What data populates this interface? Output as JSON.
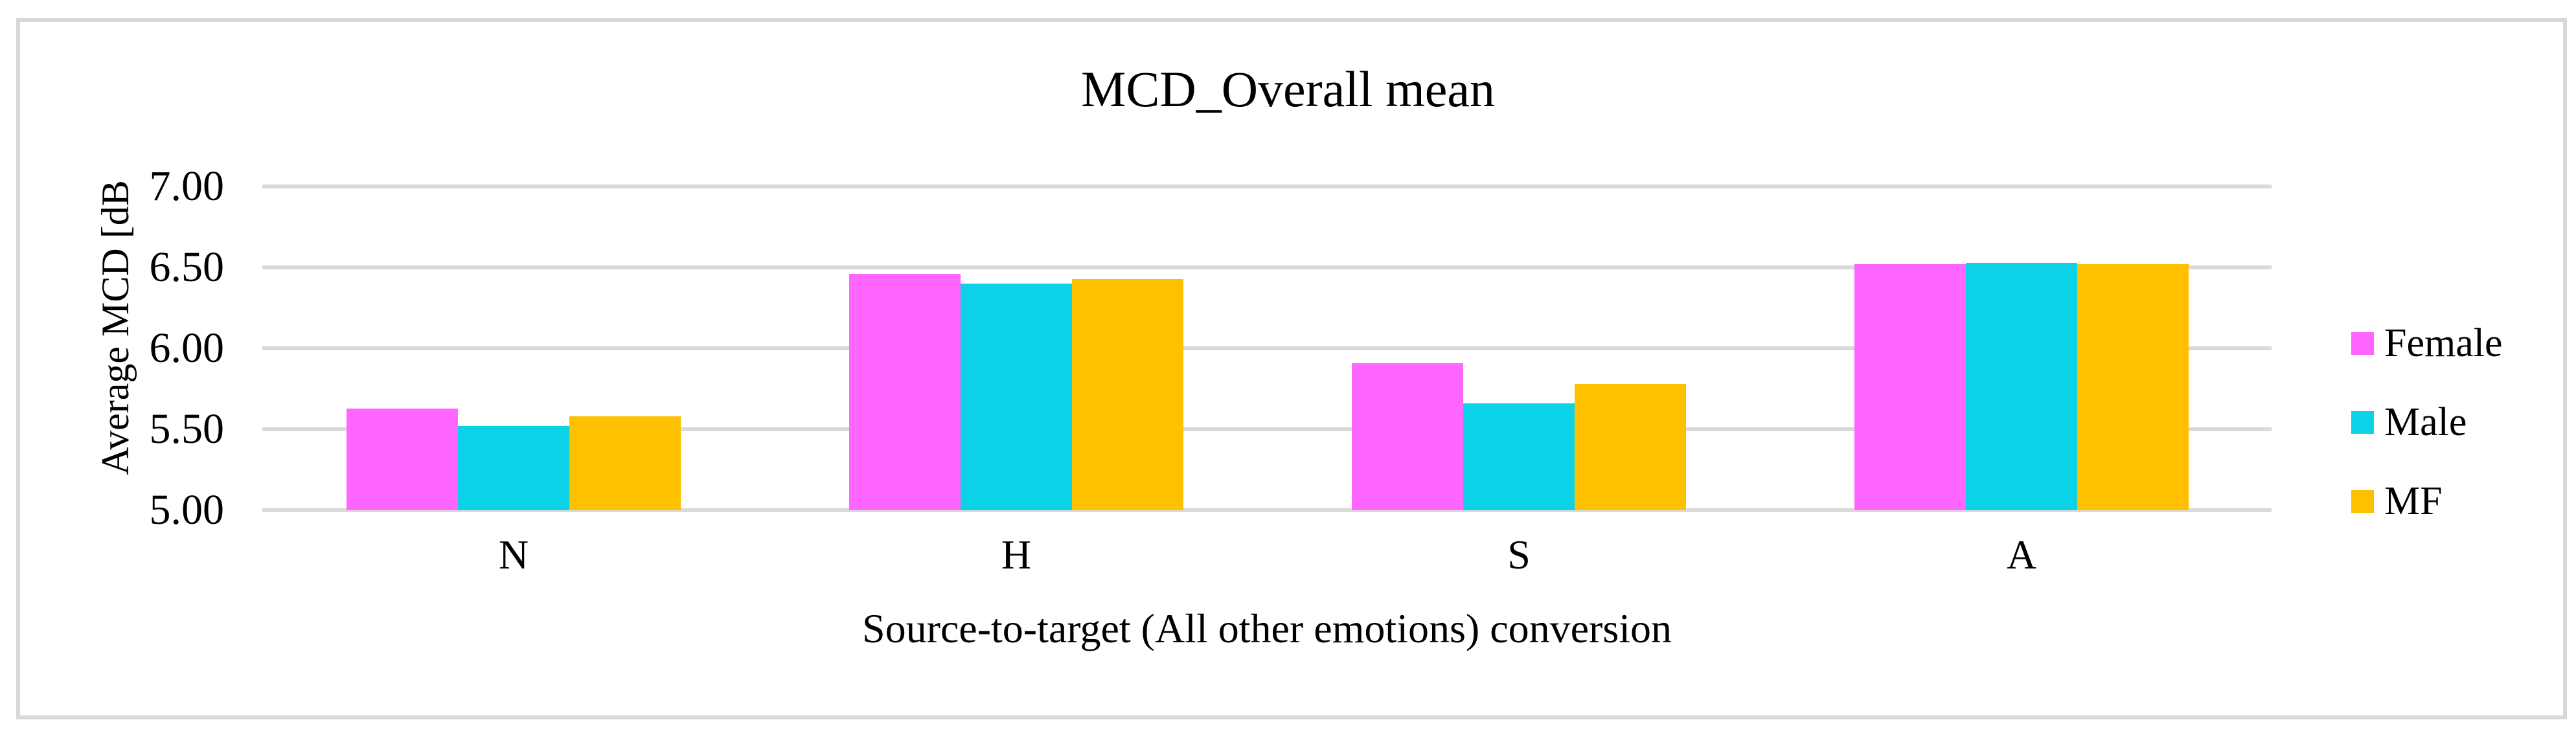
{
  "figure": {
    "border_color": "#D8D8D8",
    "background_color": "#FFFFFF"
  },
  "chart_data": {
    "type": "bar",
    "title": "MCD_Overall mean",
    "xlabel": "Source-to-target (All other emotions) conversion",
    "ylabel": "Average MCD [dB",
    "categories": [
      "N",
      "H",
      "S",
      "A"
    ],
    "series": [
      {
        "name": "Female",
        "color": "#FF66FF",
        "values": [
          5.63,
          6.46,
          5.91,
          6.52
        ]
      },
      {
        "name": "Male",
        "color": "#0CD2E8",
        "values": [
          5.52,
          6.4,
          5.66,
          6.53
        ]
      },
      {
        "name": "MF",
        "color": "#FFC000",
        "values": [
          5.58,
          6.43,
          5.78,
          6.52
        ]
      }
    ],
    "ylim": [
      5.0,
      7.0
    ],
    "ytick_values": [
      7.0,
      6.5,
      6.0,
      5.5,
      5.0
    ],
    "ytick_labels": [
      "7.00",
      "6.50",
      "6.00",
      "5.50",
      "5.00"
    ],
    "grid": true,
    "gridline_color": "#D9D9D9",
    "legend_position": "right"
  }
}
